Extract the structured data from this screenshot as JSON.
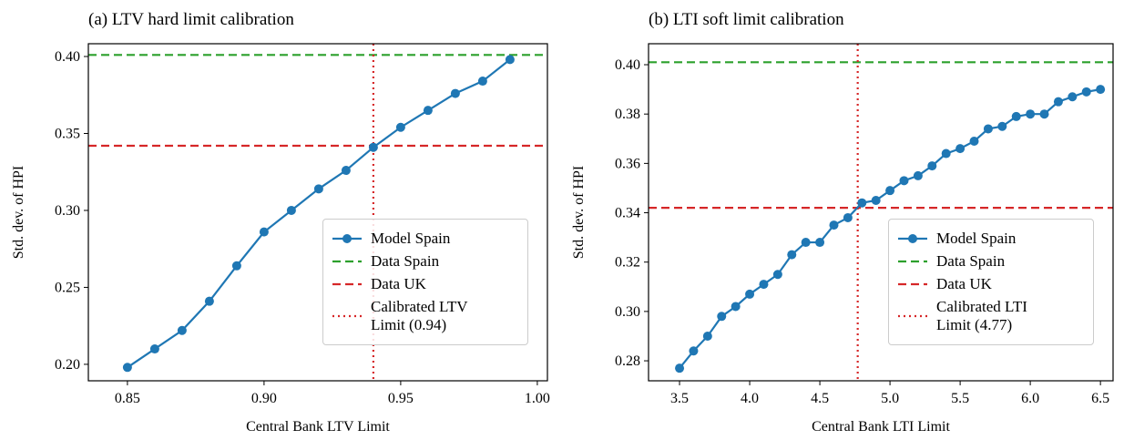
{
  "chart_data": [
    {
      "type": "line",
      "title": "(a) LTV hard limit calibration",
      "xlabel": "Central Bank LTV Limit",
      "ylabel": "Std. dev. of HPI",
      "x": [
        0.85,
        0.86,
        0.87,
        0.88,
        0.89,
        0.9,
        0.91,
        0.92,
        0.93,
        0.94,
        0.95,
        0.96,
        0.97,
        0.98,
        0.99
      ],
      "series": [
        {
          "name": "Model Spain",
          "color": "#1f77b4",
          "values": [
            0.198,
            0.21,
            0.222,
            0.241,
            0.264,
            0.286,
            0.3,
            0.314,
            0.326,
            0.341,
            0.354,
            0.365,
            0.376,
            0.384,
            0.398
          ]
        }
      ],
      "reference_lines": [
        {
          "name": "Data Spain",
          "color": "#2ca02c",
          "orientation": "horizontal",
          "style": "dashed",
          "value": 0.401
        },
        {
          "name": "Data UK",
          "color": "#d62728",
          "orientation": "horizontal",
          "style": "dashed",
          "value": 0.342
        },
        {
          "name": "Calibrated LTV Limit (0.94)",
          "color": "#d62728",
          "orientation": "vertical",
          "style": "dotted",
          "value": 0.94
        }
      ],
      "xlim": [
        0.8357,
        1.0037
      ],
      "ylim": [
        0.1893,
        0.4083
      ],
      "xticks": [
        0.85,
        {
          "value": 0.9,
          "label": "0.90"
        },
        0.95,
        {
          "value": 1.0,
          "label": "1.00"
        }
      ],
      "yticks": [
        {
          "value": 0.2,
          "label": "0.20"
        },
        0.25,
        {
          "value": 0.3,
          "label": "0.30"
        },
        0.35,
        {
          "value": 0.4,
          "label": "0.40"
        }
      ],
      "legend": "lower right"
    },
    {
      "type": "line",
      "title": "(b) LTI soft limit calibration",
      "xlabel": "Central Bank LTI Limit",
      "ylabel": "Std. dev. of HPI",
      "x": [
        3.5,
        3.6,
        3.7,
        3.8,
        3.9,
        4.0,
        4.1,
        4.2,
        4.3,
        4.4,
        4.5,
        4.6,
        4.7,
        4.8,
        4.9,
        5.0,
        5.1,
        5.2,
        5.3,
        5.4,
        5.5,
        5.6,
        5.7,
        5.8,
        5.9,
        6.0,
        6.1,
        6.2,
        6.3,
        6.4,
        6.5
      ],
      "series": [
        {
          "name": "Model Spain",
          "color": "#1f77b4",
          "values": [
            0.277,
            0.284,
            0.29,
            0.298,
            0.302,
            0.307,
            0.311,
            0.315,
            0.323,
            0.328,
            0.328,
            0.335,
            0.338,
            0.344,
            0.345,
            0.349,
            0.353,
            0.355,
            0.359,
            0.364,
            0.366,
            0.369,
            0.374,
            0.375,
            0.379,
            0.38,
            0.38,
            0.385,
            0.387,
            0.389,
            0.39
          ]
        }
      ],
      "reference_lines": [
        {
          "name": "Data Spain",
          "color": "#2ca02c",
          "orientation": "horizontal",
          "style": "dashed",
          "value": 0.401
        },
        {
          "name": "Data UK",
          "color": "#d62728",
          "orientation": "horizontal",
          "style": "dashed",
          "value": 0.342
        },
        {
          "name": "Calibrated LTI Limit (4.77)",
          "color": "#d62728",
          "orientation": "vertical",
          "style": "dotted",
          "value": 4.77
        }
      ],
      "xlim": [
        3.279,
        6.59
      ],
      "ylim": [
        0.2719,
        0.4085
      ],
      "xticks": [
        3.5,
        {
          "value": 4.0,
          "label": "4.0"
        },
        4.5,
        {
          "value": 5.0,
          "label": "5.0"
        },
        5.5,
        {
          "value": 6.0,
          "label": "6.0"
        },
        6.5
      ],
      "yticks": [
        0.28,
        {
          "value": 0.3,
          "label": "0.30"
        },
        0.32,
        0.34,
        0.36,
        0.38,
        {
          "value": 0.4,
          "label": "0.40"
        }
      ],
      "legend": "lower right"
    }
  ]
}
